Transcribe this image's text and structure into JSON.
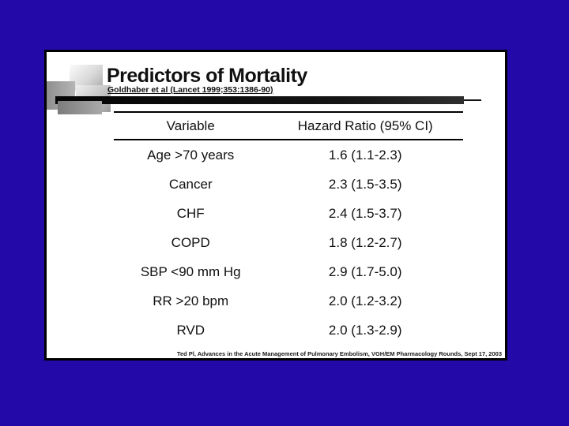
{
  "window": {
    "background_color": "#2209A8"
  },
  "slide": {
    "title": "Predictors of Mortality",
    "subtitle": "Goldhaber et al (Lancet 1999;353:1386-90)",
    "footer": "Ted Pl, Advances in the Acute Management of Pulmonary Embolism, VGH/EM Pharmacology Rounds, Sept 17, 2003",
    "colors": {
      "slide_background": "#FFFFFF",
      "text": "#000000",
      "accent_bar": "#111111",
      "decoration_gray": "#A9A9A9"
    }
  },
  "chart_data": {
    "type": "table",
    "title": "Predictors of Mortality",
    "source": "Goldhaber et al (Lancet 1999;353:1386-90)",
    "columns": [
      "Variable",
      "Hazard Ratio (95% CI)"
    ],
    "rows": [
      [
        "Age >70 years",
        "1.6 (1.1-2.3)"
      ],
      [
        "Cancer",
        "2.3 (1.5-3.5)"
      ],
      [
        "CHF",
        "2.4 (1.5-3.7)"
      ],
      [
        "COPD",
        "1.8 (1.2-2.7)"
      ],
      [
        "SBP <90 mm Hg",
        "2.9 (1.7-5.0)"
      ],
      [
        "RR >20 bpm",
        "2.0 (1.2-3.2)"
      ],
      [
        "RVD",
        "2.0 (1.3-2.9)"
      ]
    ]
  }
}
